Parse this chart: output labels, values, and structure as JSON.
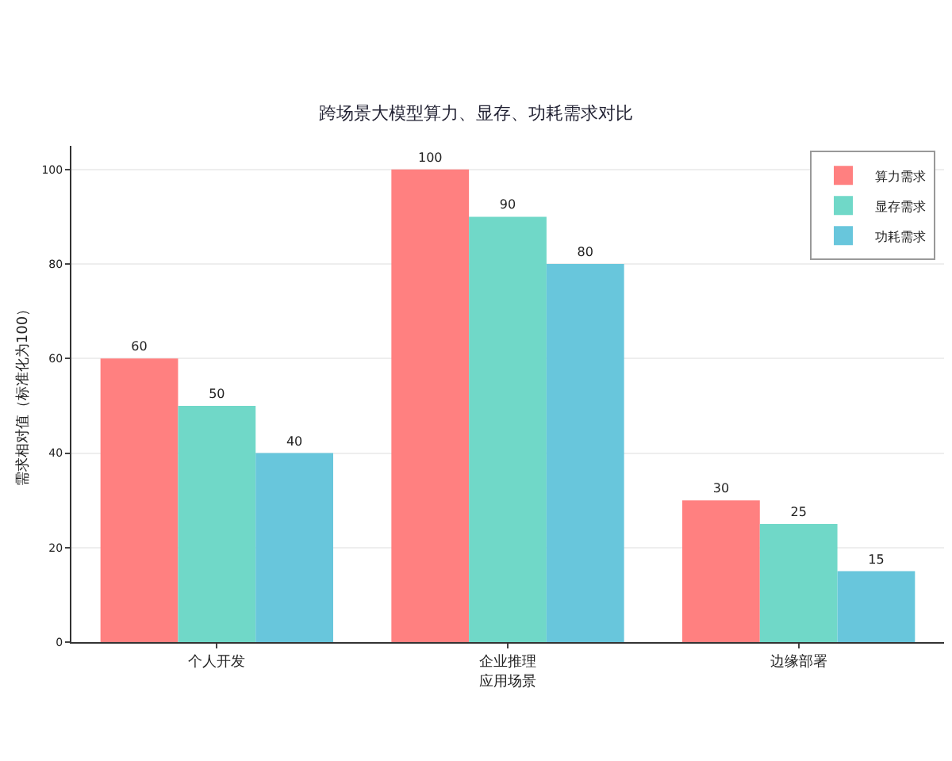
{
  "chart_data": {
    "type": "bar",
    "title": "跨场景大模型算力、显存、功耗需求对比",
    "xlabel": "应用场景",
    "ylabel": "需求相对值（标准化为100）",
    "categories": [
      "个人开发",
      "企业推理",
      "边缘部署"
    ],
    "series": [
      {
        "name": "算力需求",
        "color": "#ff8080",
        "values": [
          60,
          100,
          30
        ]
      },
      {
        "name": "显存需求",
        "color": "#70d8c8",
        "values": [
          50,
          90,
          25
        ]
      },
      {
        "name": "功耗需求",
        "color": "#68c6dc",
        "values": [
          40,
          80,
          15
        ]
      }
    ],
    "ylim": [
      0,
      105
    ],
    "yticks": [
      0,
      20,
      40,
      60,
      80,
      100
    ],
    "grid": "y",
    "legend": "top right",
    "data_labels": true
  }
}
